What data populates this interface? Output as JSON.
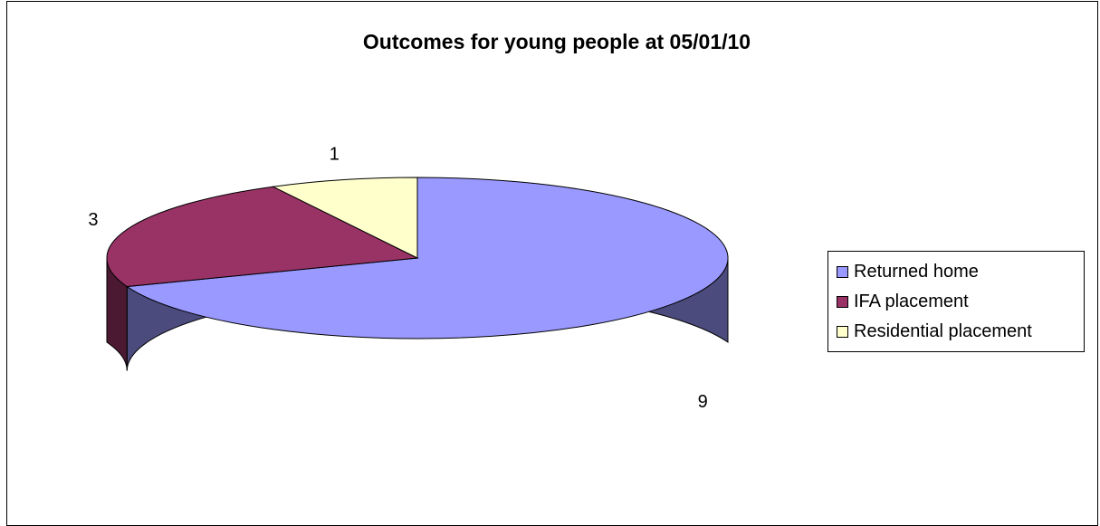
{
  "chart_data": {
    "type": "pie",
    "title": "Outcomes for young people at 05/01/10",
    "three_d": true,
    "categories": [
      "Returned home",
      "IFA placement",
      "Residential placement"
    ],
    "values": [
      9,
      3,
      1
    ],
    "data_labels": [
      "9",
      "3",
      "1"
    ],
    "colors": [
      "#9999ff",
      "#993366",
      "#ffffcc"
    ],
    "side_colors": [
      "#4b4b7d",
      "#4b1932",
      "#7d7d64"
    ],
    "legend_position": "right",
    "start_angle_deg": 90,
    "direction": "clockwise"
  }
}
